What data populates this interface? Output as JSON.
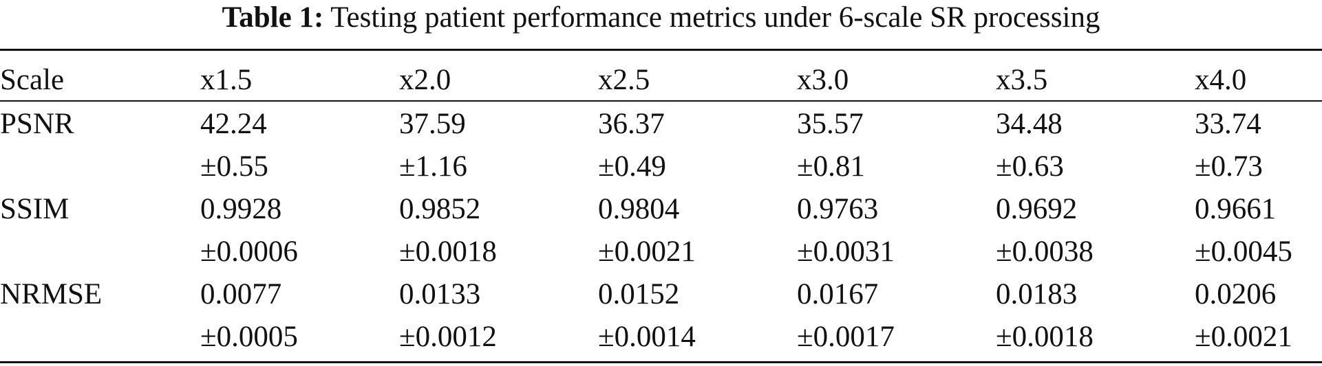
{
  "caption": {
    "label": "Table 1:",
    "text": "Testing patient performance metrics under 6-scale SR processing"
  },
  "table": {
    "header": [
      "Scale",
      "x1.5",
      "x2.0",
      "x2.5",
      "x3.0",
      "x3.5",
      "x4.0"
    ],
    "rows": [
      {
        "metric": "PSNR",
        "means": [
          "42.24",
          "37.59",
          "36.37",
          "35.57",
          "34.48",
          "33.74"
        ],
        "sds": [
          "±0.55",
          "±1.16",
          "±0.49",
          "±0.81",
          "±0.63",
          "±0.73"
        ]
      },
      {
        "metric": "SSIM",
        "means": [
          "0.9928",
          "0.9852",
          "0.9804",
          "0.9763",
          "0.9692",
          "0.9661"
        ],
        "sds": [
          "±0.0006",
          "±0.0018",
          "±0.0021",
          "±0.0031",
          "±0.0038",
          "±0.0045"
        ]
      },
      {
        "metric": "NRMSE",
        "means": [
          "0.0077",
          "0.0133",
          "0.0152",
          "0.0167",
          "0.0183",
          "0.0206"
        ],
        "sds": [
          "±0.0005",
          "±0.0012",
          "±0.0014",
          "±0.0017",
          "±0.0018",
          "±0.0021"
        ]
      }
    ]
  }
}
